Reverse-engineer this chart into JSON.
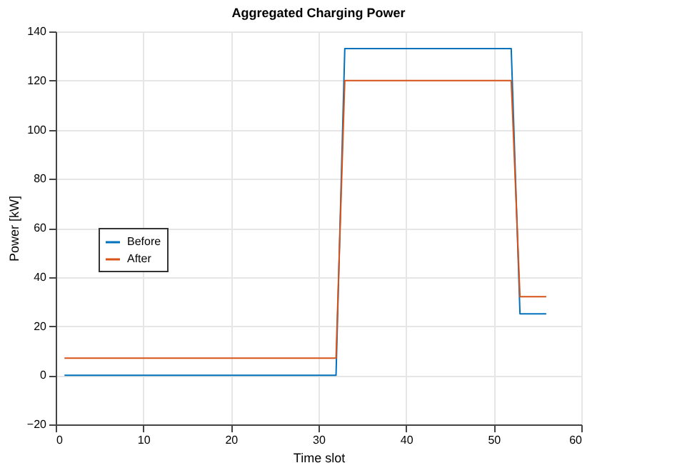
{
  "chart_data": {
    "type": "line",
    "title": "Aggregated Charging Power",
    "xlabel": "Time slot",
    "ylabel": "Power [kW]",
    "x": [
      1,
      32,
      33,
      52,
      53,
      56
    ],
    "series": [
      {
        "name": "Before",
        "color": "#0072bd",
        "values": [
          0,
          0,
          133,
          133,
          25,
          25
        ]
      },
      {
        "name": "After",
        "color": "#d95319",
        "values": [
          7,
          7,
          120,
          120,
          32,
          32
        ]
      }
    ],
    "xlim": [
      0,
      60
    ],
    "xticks": [
      0,
      10,
      20,
      30,
      40,
      50,
      60
    ],
    "ylim": [
      -20,
      140
    ],
    "yticks": [
      -20,
      0,
      20,
      40,
      60,
      80,
      100,
      120,
      140
    ],
    "grid": true,
    "legend": "left",
    "line_style": "solid",
    "marker": "none"
  }
}
